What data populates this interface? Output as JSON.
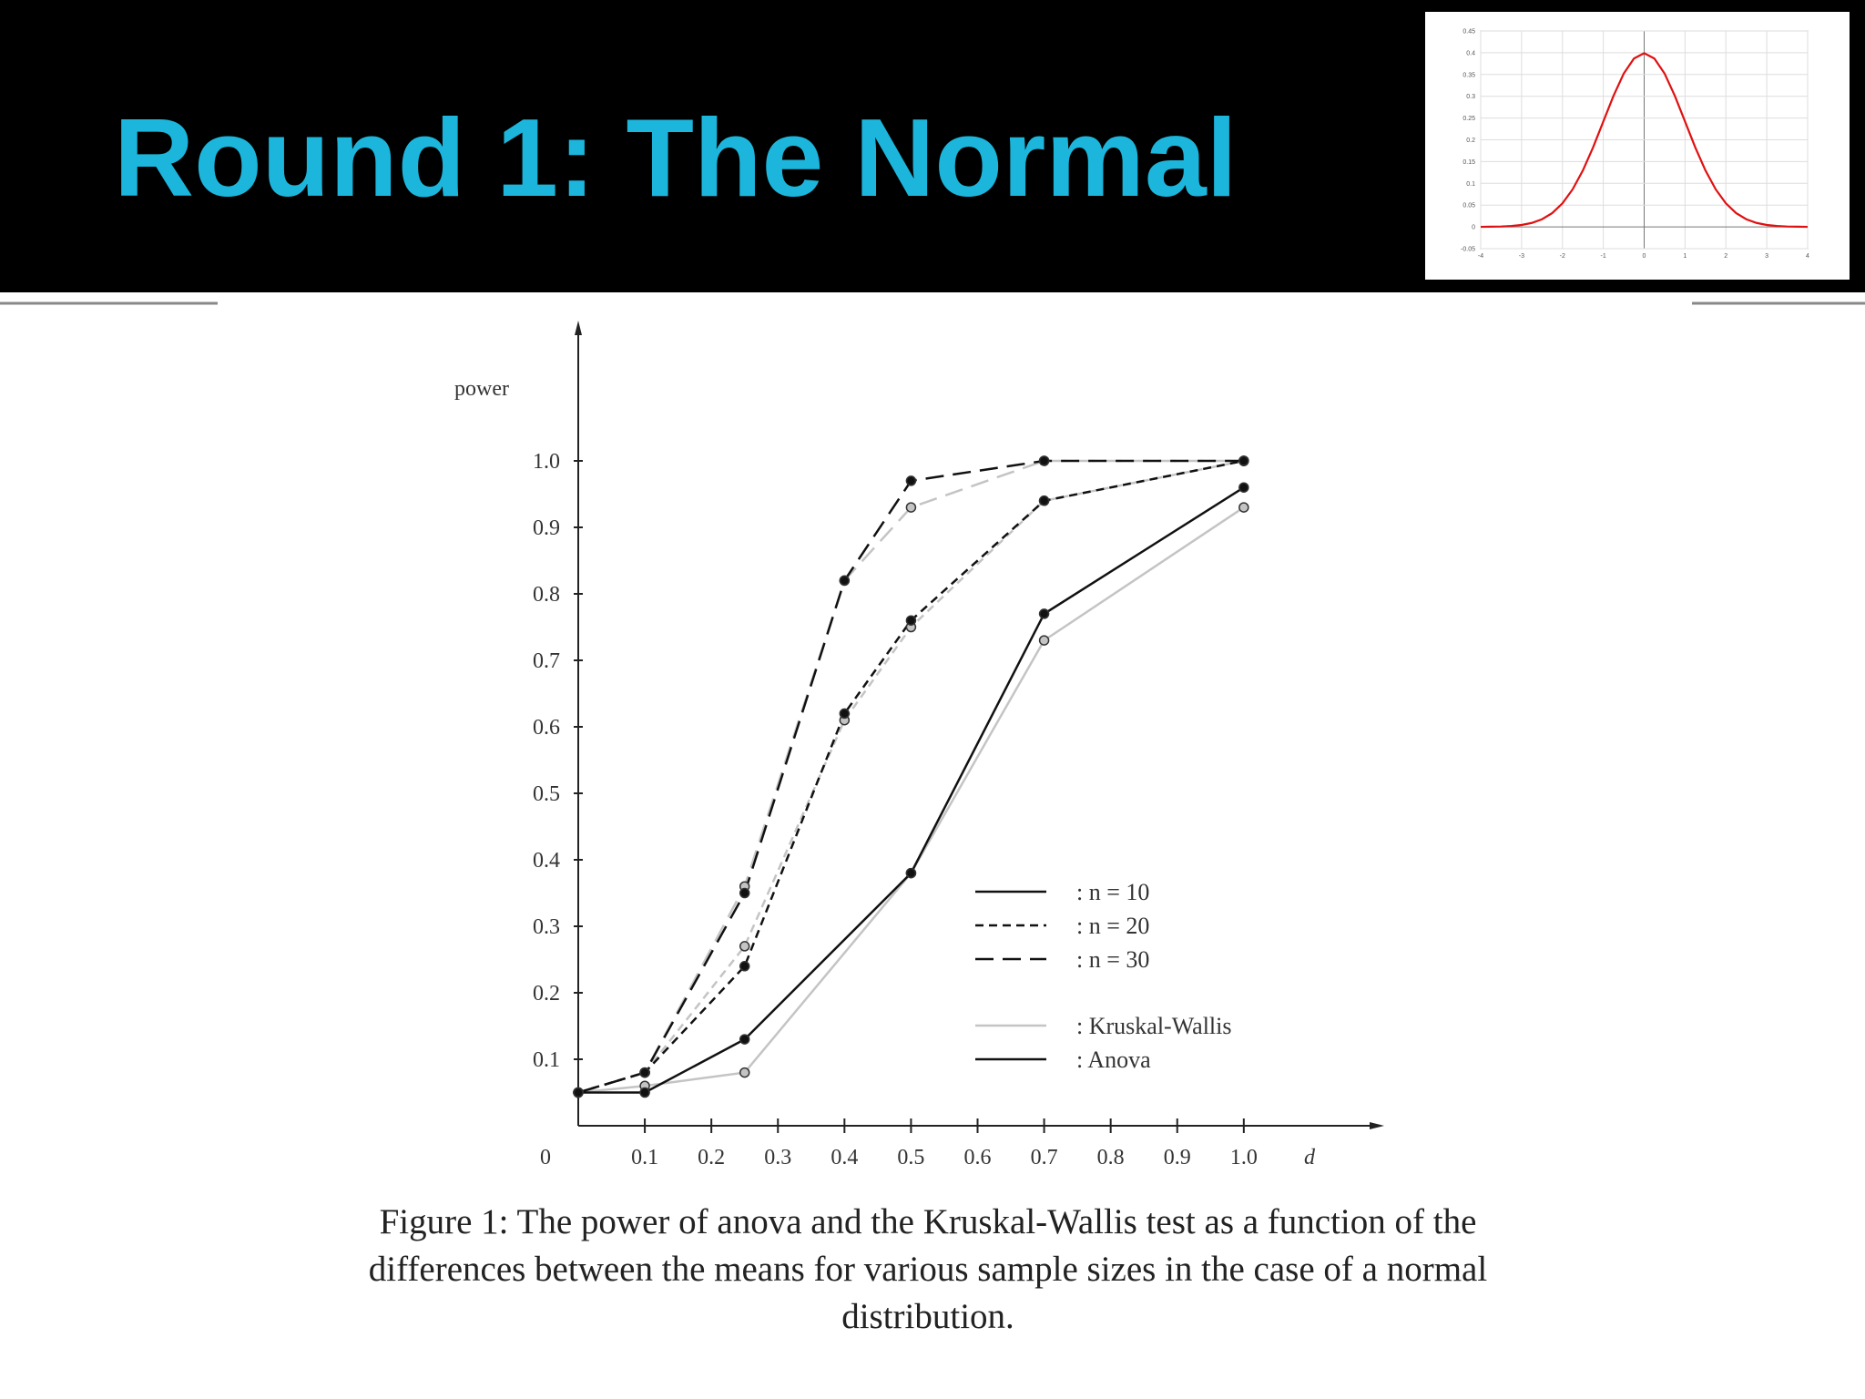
{
  "slide": {
    "title": "Round 1: The Normal"
  },
  "chart_data": [
    {
      "type": "line",
      "x_label": "d",
      "y_label": "power",
      "xlim": [
        0,
        1.2
      ],
      "ylim": [
        0,
        1.2
      ],
      "xticks": [
        0,
        0.1,
        0.2,
        0.3,
        0.4,
        0.5,
        0.6,
        0.7,
        0.8,
        0.9,
        {
          "value": 1,
          "label": "1.0"
        }
      ],
      "yticks": [
        0.1,
        0.2,
        0.3,
        0.4,
        0.5,
        0.6,
        0.7,
        0.8,
        0.9,
        {
          "value": 1,
          "label": "1.0"
        }
      ],
      "series": [
        {
          "name": ": n = 10",
          "dash": "solid",
          "x": [
            0,
            0.1,
            0.25,
            0.5,
            0.7,
            1.0
          ]
        },
        {
          "name": ": n = 20",
          "dash": "short",
          "x": [
            0,
            0.1,
            0.25,
            0.4,
            0.5,
            0.7,
            1.0
          ]
        },
        {
          "name": ": n = 30",
          "dash": "long",
          "x": [
            0,
            0.1,
            0.25,
            0.4,
            0.5,
            0.7,
            1.0
          ]
        }
      ],
      "tests": [
        {
          "name": ": Kruskal-Wallis",
          "color": "#c4c4c4",
          "values": [
            [
              0.05,
              0.06,
              0.08,
              0.38,
              0.73,
              0.93
            ],
            [
              0.05,
              0.08,
              0.27,
              0.61,
              0.75,
              0.94,
              1.0
            ],
            [
              0.05,
              0.08,
              0.36,
              0.82,
              0.93,
              1.0,
              1.0
            ]
          ]
        },
        {
          "name": ": Anova",
          "color": "#111111",
          "values": [
            [
              0.05,
              0.05,
              0.13,
              0.38,
              0.77,
              0.96
            ],
            [
              0.05,
              0.08,
              0.24,
              0.62,
              0.76,
              0.94,
              1.0
            ],
            [
              0.05,
              0.08,
              0.35,
              0.82,
              0.97,
              1.0,
              1.0
            ]
          ]
        }
      ],
      "caption": [
        "Figure 1: The power of anova and the Kruskal-Wallis test as a function of the",
        "differences between the means for various sample sizes in the case of a normal",
        "distribution."
      ]
    },
    {
      "type": "line",
      "grid": true,
      "xlim": [
        -4,
        4
      ],
      "ylim": [
        -0.05,
        0.45
      ],
      "xticks": [
        -4,
        -3,
        -2,
        -1,
        0,
        1,
        2,
        3,
        4
      ],
      "yticks": [
        -0.05,
        0,
        0.05,
        0.1,
        0.15,
        0.2,
        0.25,
        0.3,
        0.35,
        0.4,
        0.45
      ],
      "x": [
        -4,
        -3.75,
        -3.5,
        -3.25,
        -3,
        -2.75,
        -2.5,
        -2.25,
        -2,
        -1.75,
        -1.5,
        -1.25,
        -1,
        -0.75,
        -0.5,
        -0.25,
        0,
        0.25,
        0.5,
        0.75,
        1,
        1.25,
        1.5,
        1.75,
        2,
        2.25,
        2.5,
        2.75,
        3,
        3.25,
        3.5,
        3.75,
        4
      ],
      "series": [
        {
          "color": "#e01010",
          "values": [
            0.0001,
            0.0004,
            0.0009,
            0.002,
            0.0044,
            0.0091,
            0.0175,
            0.0317,
            0.054,
            0.0863,
            0.1295,
            0.1826,
            0.242,
            0.3011,
            0.3521,
            0.3867,
            0.3989,
            0.3867,
            0.3521,
            0.3011,
            0.242,
            0.1826,
            0.1295,
            0.0863,
            0.054,
            0.0317,
            0.0175,
            0.0091,
            0.0044,
            0.002,
            0.0009,
            0.0004,
            0.0001
          ]
        }
      ]
    }
  ]
}
